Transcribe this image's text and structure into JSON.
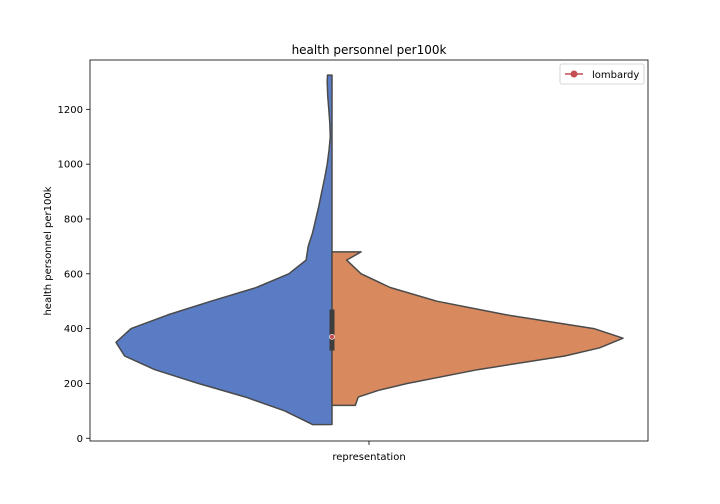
{
  "chart_data": {
    "type": "violin",
    "title": "health personnel per100k",
    "xlabel": "",
    "ylabel": "health personnel per100k",
    "categories": [
      "representation"
    ],
    "ylim": [
      -10,
      1380
    ],
    "yticks": [
      0,
      200,
      400,
      600,
      800,
      1000,
      1200
    ],
    "series": [
      {
        "name": "",
        "side": "left",
        "color": "#5a7cc5",
        "range": [
          50,
          1325
        ],
        "density": [
          [
            50,
            0.09
          ],
          [
            100,
            0.22
          ],
          [
            150,
            0.4
          ],
          [
            200,
            0.62
          ],
          [
            250,
            0.82
          ],
          [
            300,
            0.96
          ],
          [
            350,
            1.0
          ],
          [
            400,
            0.93
          ],
          [
            450,
            0.76
          ],
          [
            500,
            0.56
          ],
          [
            550,
            0.35
          ],
          [
            600,
            0.2
          ],
          [
            650,
            0.12
          ],
          [
            700,
            0.11
          ],
          [
            750,
            0.09
          ],
          [
            800,
            0.075
          ],
          [
            850,
            0.06
          ],
          [
            900,
            0.047
          ],
          [
            950,
            0.034
          ],
          [
            1000,
            0.022
          ],
          [
            1050,
            0.014
          ],
          [
            1100,
            0.008
          ],
          [
            1150,
            0.01
          ],
          [
            1200,
            0.015
          ],
          [
            1250,
            0.02
          ],
          [
            1300,
            0.022
          ],
          [
            1325,
            0.021
          ]
        ]
      },
      {
        "name": "",
        "side": "right",
        "color": "#d88a5e",
        "range": [
          120,
          680
        ],
        "density": [
          [
            120,
            0.08
          ],
          [
            150,
            0.09
          ],
          [
            175,
            0.16
          ],
          [
            200,
            0.26
          ],
          [
            250,
            0.5
          ],
          [
            300,
            0.8
          ],
          [
            330,
            0.92
          ],
          [
            365,
            1.0
          ],
          [
            400,
            0.9
          ],
          [
            450,
            0.6
          ],
          [
            500,
            0.36
          ],
          [
            550,
            0.2
          ],
          [
            600,
            0.1
          ],
          [
            650,
            0.05
          ],
          [
            680,
            0.1
          ]
        ]
      }
    ],
    "box": {
      "q1": 320,
      "q3": 470,
      "median": 370
    },
    "markers": [
      {
        "name": "lombardy",
        "value": 370,
        "color": "#c44e52"
      }
    ],
    "legend": {
      "position": "upper-right",
      "entries": [
        "lombardy"
      ]
    }
  }
}
